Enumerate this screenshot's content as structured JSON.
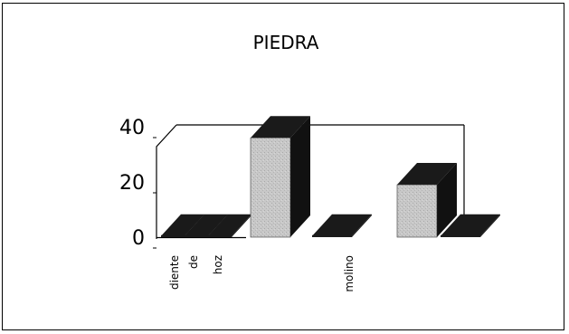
{
  "chart_data": {
    "type": "bar",
    "style": "3d-column",
    "title": "PIEDRA",
    "xlabel": "",
    "ylabel": "",
    "ylim": [
      0,
      40
    ],
    "yticks": [
      0,
      20,
      40
    ],
    "categories": [
      "diente",
      "de",
      "hoz",
      "",
      "molino",
      "",
      ""
    ],
    "values": [
      0.4,
      0.4,
      0.4,
      36,
      0.4,
      19,
      0.4
    ],
    "grid": false,
    "legend": "none"
  },
  "colors": {
    "bar_front": "#c8c8c8",
    "bar_top": "#1a1a1a",
    "bar_side": "#111111",
    "axis": "#000000",
    "background": "#ffffff"
  }
}
